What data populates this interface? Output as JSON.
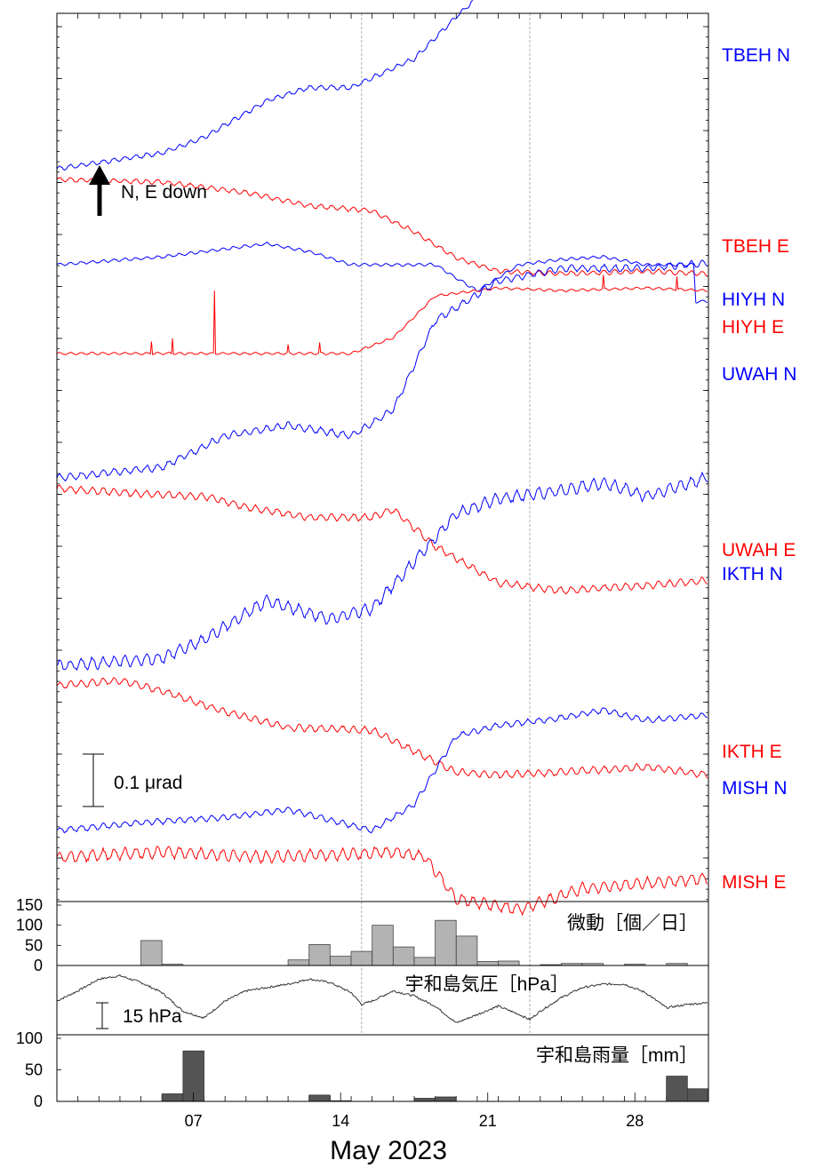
{
  "chart_data": {
    "type": "line",
    "xlabel": "May 2023",
    "x_ticks": [
      "07",
      "14",
      "21",
      "28"
    ],
    "x_range_days": [
      0,
      31
    ],
    "reference_days": [
      14.5,
      22.5
    ],
    "colors": {
      "N": "#0000ff",
      "E": "#ff0000",
      "bar_tremor": "#b3b3b3",
      "bar_rain": "#555555"
    },
    "arrow_label": "N, E down",
    "scale_label": "0.1 μrad",
    "series": [
      {
        "name": "TBEH N",
        "component": "N",
        "stations": [
          [
            0,
            0.0
          ],
          [
            5,
            0.06
          ],
          [
            7,
            0.12
          ],
          [
            10,
            0.26
          ],
          [
            12,
            0.31
          ],
          [
            14,
            0.31
          ],
          [
            17,
            0.42
          ],
          [
            19,
            0.58
          ],
          [
            21,
            0.73
          ],
          [
            22,
            0.78
          ],
          [
            24,
            0.8
          ],
          [
            26,
            0.82
          ],
          [
            28,
            0.81
          ],
          [
            31,
            0.8
          ]
        ],
        "noise": 0.008
      },
      {
        "name": "TBEH E",
        "component": "E",
        "stations": [
          [
            0,
            0.0
          ],
          [
            5,
            -0.01
          ],
          [
            9,
            -0.05
          ],
          [
            12,
            -0.1
          ],
          [
            15,
            -0.12
          ],
          [
            17,
            -0.2
          ],
          [
            19,
            -0.3
          ],
          [
            21,
            -0.35
          ],
          [
            24,
            -0.36
          ],
          [
            28,
            -0.35
          ],
          [
            31,
            -0.36
          ]
        ],
        "noise": 0.008
      },
      {
        "name": "HIYH N",
        "component": "N",
        "stations": [
          [
            0,
            0.0
          ],
          [
            5,
            0.03
          ],
          [
            10,
            0.08
          ],
          [
            12,
            0.05
          ],
          [
            14,
            0.0
          ],
          [
            18,
            0.0
          ],
          [
            20,
            -0.1
          ],
          [
            22,
            0.0
          ],
          [
            24,
            0.02
          ],
          [
            26,
            0.03
          ],
          [
            28,
            0.0
          ],
          [
            30.3,
            0.0
          ],
          [
            30.4,
            -0.14
          ],
          [
            31,
            -0.14
          ]
        ],
        "noise": 0.005
      },
      {
        "name": "HIYH E",
        "component": "E",
        "stations": [
          [
            0,
            0.0
          ],
          [
            10,
            0.0
          ],
          [
            14,
            0.0
          ],
          [
            16,
            0.06
          ],
          [
            18,
            0.22
          ],
          [
            21,
            0.25
          ],
          [
            24,
            0.24
          ],
          [
            28,
            0.25
          ],
          [
            31,
            0.24
          ]
        ],
        "noise": 0.004,
        "spikes": [
          [
            4.5,
            0.05
          ],
          [
            5.5,
            0.06
          ],
          [
            7.5,
            0.24
          ],
          [
            11,
            0.03
          ],
          [
            12.5,
            0.04
          ],
          [
            26,
            0.05
          ],
          [
            29.5,
            0.05
          ]
        ]
      },
      {
        "name": "UWAH N",
        "component": "N",
        "stations": [
          [
            0,
            0.0
          ],
          [
            5,
            0.04
          ],
          [
            8,
            0.16
          ],
          [
            11,
            0.2
          ],
          [
            14,
            0.16
          ],
          [
            16,
            0.26
          ],
          [
            18,
            0.6
          ],
          [
            21,
            0.75
          ],
          [
            24,
            0.8
          ],
          [
            28,
            0.8
          ],
          [
            31,
            0.82
          ]
        ],
        "noise": 0.012
      },
      {
        "name": "UWAH E",
        "component": "E",
        "stations": [
          [
            0,
            0.0
          ],
          [
            4,
            -0.02
          ],
          [
            7,
            -0.03
          ],
          [
            9,
            -0.07
          ],
          [
            12,
            -0.11
          ],
          [
            15,
            -0.11
          ],
          [
            16,
            -0.08
          ],
          [
            18,
            -0.22
          ],
          [
            21,
            -0.36
          ],
          [
            24,
            -0.39
          ],
          [
            28,
            -0.37
          ],
          [
            31,
            -0.35
          ]
        ],
        "noise": 0.012
      },
      {
        "name": "IKTH N",
        "component": "N",
        "stations": [
          [
            0,
            0.0
          ],
          [
            5,
            0.03
          ],
          [
            7,
            0.1
          ],
          [
            10,
            0.25
          ],
          [
            13,
            0.18
          ],
          [
            15,
            0.22
          ],
          [
            17,
            0.4
          ],
          [
            19,
            0.58
          ],
          [
            21,
            0.64
          ],
          [
            24,
            0.67
          ],
          [
            26,
            0.7
          ],
          [
            28,
            0.65
          ],
          [
            31,
            0.72
          ]
        ],
        "noise": 0.02
      },
      {
        "name": "IKTH E",
        "component": "E",
        "stations": [
          [
            0,
            0.0
          ],
          [
            3,
            0.02
          ],
          [
            5,
            -0.02
          ],
          [
            8,
            -0.1
          ],
          [
            11,
            -0.16
          ],
          [
            15,
            -0.17
          ],
          [
            17,
            -0.25
          ],
          [
            19,
            -0.33
          ],
          [
            21,
            -0.34
          ],
          [
            24,
            -0.33
          ],
          [
            28,
            -0.31
          ],
          [
            31,
            -0.34
          ]
        ],
        "noise": 0.012
      },
      {
        "name": "MISH N",
        "component": "N",
        "stations": [
          [
            0,
            0.0
          ],
          [
            4,
            0.03
          ],
          [
            8,
            0.05
          ],
          [
            11,
            0.08
          ],
          [
            13,
            0.04
          ],
          [
            15,
            0.0
          ],
          [
            17,
            0.1
          ],
          [
            19,
            0.36
          ],
          [
            21,
            0.4
          ],
          [
            24,
            0.43
          ],
          [
            26,
            0.46
          ],
          [
            28,
            0.42
          ],
          [
            31,
            0.44
          ]
        ],
        "noise": 0.01
      },
      {
        "name": "MISH E",
        "component": "E",
        "stations": [
          [
            0,
            0.0
          ],
          [
            5,
            0.02
          ],
          [
            10,
            0.0
          ],
          [
            16,
            0.02
          ],
          [
            17.5,
            0.0
          ],
          [
            19,
            -0.16
          ],
          [
            22,
            -0.2
          ],
          [
            25,
            -0.12
          ],
          [
            28,
            -0.1
          ],
          [
            31,
            -0.08
          ]
        ],
        "noise": 0.02
      }
    ],
    "tremor": {
      "title": "微動［個／日］",
      "ylim": [
        0,
        150
      ],
      "y_ticks": [
        "150",
        "100",
        "50",
        "0"
      ],
      "bars": [
        [
          5,
          62
        ],
        [
          6,
          3
        ],
        [
          12,
          14
        ],
        [
          13,
          52
        ],
        [
          14,
          23
        ],
        [
          15,
          35
        ],
        [
          16,
          100
        ],
        [
          17,
          46
        ],
        [
          18,
          20
        ],
        [
          19,
          112
        ],
        [
          20,
          73
        ],
        [
          21,
          10
        ],
        [
          22,
          11
        ],
        [
          24,
          2
        ],
        [
          25,
          5
        ],
        [
          26,
          5
        ],
        [
          28,
          3
        ],
        [
          30,
          5
        ]
      ]
    },
    "pressure": {
      "title": "宇和島気圧［hPa］",
      "scale_label": "15 hPa",
      "stations": [
        [
          0,
          0
        ],
        [
          1,
          6
        ],
        [
          2,
          13
        ],
        [
          3,
          15
        ],
        [
          4,
          11
        ],
        [
          5,
          5
        ],
        [
          6,
          -6
        ],
        [
          7,
          -10
        ],
        [
          8,
          0
        ],
        [
          9,
          6
        ],
        [
          10,
          8
        ],
        [
          11,
          10
        ],
        [
          12,
          13
        ],
        [
          13,
          11
        ],
        [
          14,
          5
        ],
        [
          14.5,
          -2
        ],
        [
          15,
          0
        ],
        [
          16,
          6
        ],
        [
          17,
          3
        ],
        [
          18,
          -3
        ],
        [
          19,
          -13
        ],
        [
          20,
          -8
        ],
        [
          21,
          -3
        ],
        [
          22,
          -8
        ],
        [
          22.5,
          -11
        ],
        [
          23,
          -6
        ],
        [
          24,
          2
        ],
        [
          25,
          8
        ],
        [
          26,
          10
        ],
        [
          27,
          10
        ],
        [
          28,
          5
        ],
        [
          29,
          -4
        ],
        [
          30,
          -2
        ],
        [
          31,
          -1
        ]
      ]
    },
    "rain": {
      "title": "宇和島雨量［mm］",
      "ylim": [
        0,
        100
      ],
      "y_ticks": [
        "100",
        "50",
        "0"
      ],
      "bars": [
        [
          6,
          12
        ],
        [
          7,
          80
        ],
        [
          13,
          10
        ],
        [
          14,
          1
        ],
        [
          18,
          5
        ],
        [
          19,
          7
        ],
        [
          30,
          40
        ],
        [
          31,
          20
        ]
      ]
    }
  }
}
